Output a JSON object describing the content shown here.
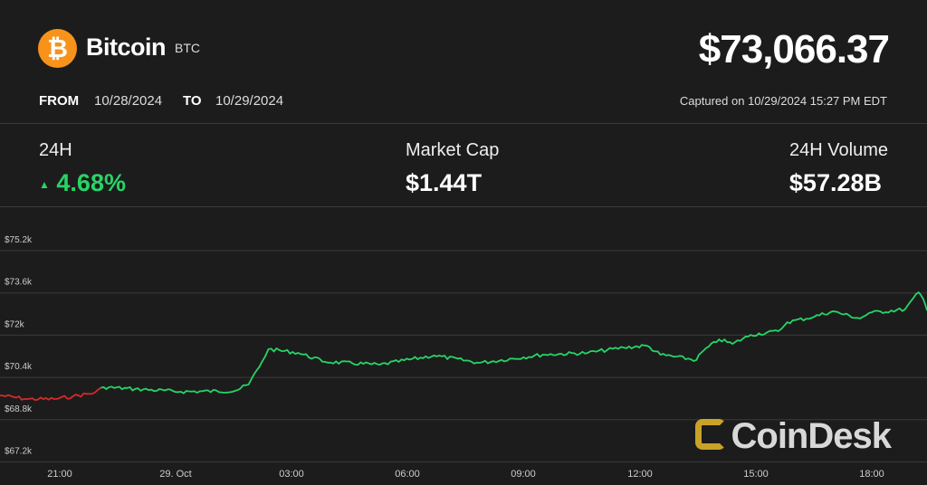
{
  "header": {
    "logo_icon": "bitcoin-icon",
    "logo_glyph": "₿",
    "name": "Bitcoin",
    "symbol": "BTC",
    "price": "$73,066.37",
    "from_label": "FROM",
    "from_date": "10/28/2024",
    "to_label": "TO",
    "to_date": "10/29/2024",
    "captured": "Captured on 10/29/2024 15:27 PM EDT"
  },
  "stats": [
    {
      "label": "24H",
      "value": "4.68%",
      "direction": "up"
    },
    {
      "label": "Market Cap",
      "value": "$1.44T"
    },
    {
      "label": "24H Volume",
      "value": "$57.28B"
    }
  ],
  "colors": {
    "up": "#27d466",
    "down": "#d42a2a",
    "brand": "#f7931a",
    "watermark_accent": "#c9a227"
  },
  "watermark": "CoinDesk",
  "chart_data": {
    "type": "line",
    "ylim": [
      66.6,
      75.8
    ],
    "yticks": [
      67.2,
      68.8,
      70.4,
      72,
      73.6,
      75.2
    ],
    "ytick_labels": [
      "$67.2k",
      "$68.8k",
      "$70.4k",
      "$72k",
      "$73.6k",
      "$75.2k"
    ],
    "xtick_labels": [
      "21:00",
      "29. Oct",
      "03:00",
      "06:00",
      "09:00",
      "12:00",
      "15:00",
      "18:00"
    ],
    "xlim": [
      "10/28 19:27",
      "10/29 19:27"
    ],
    "grid": true,
    "y_unit": "USD thousands",
    "series": [
      {
        "x": [
          "10/28 19:27",
          "10/28 20:09",
          "10/28 20:51",
          "10/28 21:20",
          "10/28 21:54",
          "10/28 22:08",
          "10/28 22:57",
          "10/29 00:08",
          "10/29 01:32",
          "10/29 01:53",
          "10/29 02:14",
          "10/29 02:24",
          "10/29 03:10",
          "10/29 03:52",
          "10/29 05:17",
          "10/29 06:41",
          "10/29 07:52",
          "10/29 09:30",
          "10/29 10:40",
          "10/29 11:36",
          "10/29 12:12",
          "10/29 12:33",
          "10/29 13:29",
          "10/29 13:36",
          "10/29 14:04",
          "10/29 14:25",
          "10/29 14:53",
          "10/29 15:36",
          "10/29 15:50",
          "10/29 16:32",
          "10/29 17:00",
          "10/29 17:43",
          "10/29 17:57",
          "10/29 18:53",
          "10/29 19:14",
          "10/29 19:21",
          "10/29 19:27"
        ],
        "y": [
          69.72,
          69.58,
          69.58,
          69.68,
          69.82,
          70.03,
          69.96,
          69.86,
          69.89,
          70.13,
          70.99,
          71.47,
          71.33,
          70.99,
          70.88,
          71.23,
          70.95,
          71.26,
          71.33,
          71.53,
          71.6,
          71.26,
          71.06,
          71.33,
          71.84,
          71.67,
          72.01,
          72.15,
          72.49,
          72.7,
          72.9,
          72.63,
          72.84,
          72.98,
          73.62,
          73.38,
          72.94
        ]
      }
    ]
  }
}
